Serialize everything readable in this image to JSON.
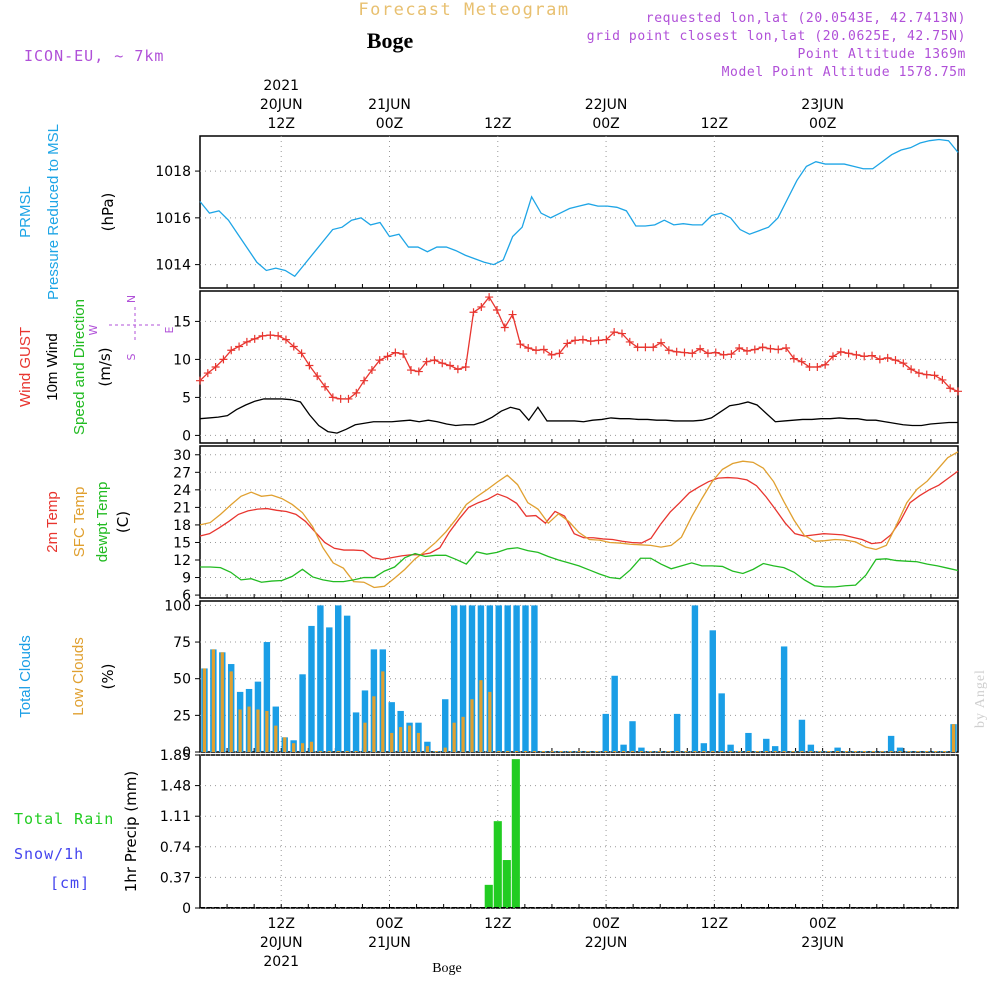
{
  "header": {
    "title": "Forecast Meteogram",
    "location": "Boge",
    "model": "ICON-EU, ~ 7km",
    "requested": "requested lon,lat (20.0543E, 42.7413N)",
    "gridpoint": "grid point closest lon,lat (20.0625E, 42.75N)",
    "point_alt": "Point Altitude 1369m",
    "model_alt": "Model Point Altitude 1578.75m",
    "watermark": "by Angel",
    "footer": "Boge"
  },
  "colors": {
    "pressure": "#1ea5e6",
    "gust": "#e8352f",
    "wind": "#000000",
    "t2m": "#e8352f",
    "tsfc": "#e0a030",
    "dewpt": "#22bb22",
    "total_clouds": "#1a9ee6",
    "low_clouds": "#e0a030",
    "rain": "#22cc22",
    "snow": "#4444ee",
    "header_title": "#e8c070",
    "header_meta": "#b050d8"
  },
  "chart_data": {
    "type": "line",
    "time_axis": {
      "start": "2021-06-20T03Z",
      "end": "2021-06-23T15Z",
      "step_hours": 1,
      "top_labels": [
        {
          "t": "2021-06-20T12Z",
          "lines": [
            "2021",
            "20JUN",
            "12Z"
          ]
        },
        {
          "t": "2021-06-21T00Z",
          "lines": [
            "21JUN",
            "00Z"
          ]
        },
        {
          "t": "2021-06-21T12Z",
          "lines": [
            "12Z"
          ]
        },
        {
          "t": "2021-06-22T00Z",
          "lines": [
            "22JUN",
            "00Z"
          ]
        },
        {
          "t": "2021-06-22T12Z",
          "lines": [
            "12Z"
          ]
        },
        {
          "t": "2021-06-23T00Z",
          "lines": [
            "23JUN",
            "00Z"
          ]
        }
      ],
      "bottom_labels": [
        {
          "t": "2021-06-20T12Z",
          "lines": [
            "12Z",
            "20JUN",
            "2021"
          ]
        },
        {
          "t": "2021-06-21T00Z",
          "lines": [
            "00Z",
            "21JUN"
          ]
        },
        {
          "t": "2021-06-21T12Z",
          "lines": [
            "12Z"
          ]
        },
        {
          "t": "2021-06-22T00Z",
          "lines": [
            "00Z",
            "22JUN"
          ]
        },
        {
          "t": "2021-06-22T12Z",
          "lines": [
            "12Z"
          ]
        },
        {
          "t": "2021-06-23T00Z",
          "lines": [
            "00Z",
            "23JUN"
          ]
        }
      ]
    },
    "panels": [
      {
        "id": "pressure",
        "type": "line",
        "labels": [
          {
            "text": "PRMSL",
            "color": "pressure"
          },
          {
            "text": "Pressure Reduced to MSL",
            "color": "pressure"
          }
        ],
        "unit": "(hPa)",
        "ylim": [
          1013,
          1019.5
        ],
        "yticks": [
          1014,
          1016,
          1018
        ],
        "series": [
          {
            "color": "pressure",
            "values": [
              1016.7,
              1016.2,
              1016.3,
              1015.9,
              1015.3,
              1014.7,
              1014.1,
              1013.75,
              1013.85,
              1013.75,
              1013.5,
              1014.0,
              1014.5,
              1015.0,
              1015.5,
              1015.6,
              1015.9,
              1016.0,
              1015.7,
              1015.8,
              1015.2,
              1015.3,
              1014.75,
              1014.75,
              1014.55,
              1014.75,
              1014.75,
              1014.6,
              1014.4,
              1014.25,
              1014.1,
              1014.0,
              1014.2,
              1015.2,
              1015.6,
              1016.9,
              1016.2,
              1016.0,
              1016.2,
              1016.4,
              1016.5,
              1016.6,
              1016.5,
              1016.5,
              1016.45,
              1016.3,
              1015.65,
              1015.65,
              1015.7,
              1015.9,
              1015.7,
              1015.75,
              1015.7,
              1015.7,
              1016.1,
              1016.2,
              1016.0,
              1015.5,
              1015.3,
              1015.45,
              1015.6,
              1016.0,
              1016.8,
              1017.6,
              1018.2,
              1018.4,
              1018.3,
              1018.3,
              1018.3,
              1018.2,
              1018.1,
              1018.1,
              1018.4,
              1018.7,
              1018.9,
              1019.0,
              1019.2,
              1019.3,
              1019.35,
              1019.3,
              1018.8
            ]
          }
        ]
      },
      {
        "id": "wind",
        "type": "line",
        "labels": [
          {
            "text": "Wind GUST",
            "color": "gust"
          },
          {
            "text": "10m Wind",
            "color": "wind"
          },
          {
            "text": "Speed and Direction",
            "color": "dewpt"
          }
        ],
        "unit": "(m/s)",
        "compass": {
          "n": "N",
          "e": "E",
          "s": "S",
          "w": "W"
        },
        "ylim": [
          -1,
          19
        ],
        "yticks": [
          0,
          5,
          10,
          15
        ],
        "series": [
          {
            "name": "gust",
            "color": "gust",
            "marker": "plus",
            "values": [
              7.2,
              8.2,
              9.0,
              10.0,
              11.2,
              11.7,
              12.3,
              12.7,
              13.1,
              13.2,
              13.1,
              12.6,
              11.7,
              10.8,
              9.2,
              7.8,
              6.4,
              5.0,
              4.8,
              4.8,
              5.6,
              7.2,
              8.6,
              9.9,
              10.4,
              10.9,
              10.7,
              8.6,
              8.4,
              9.7,
              9.9,
              9.5,
              9.2,
              8.7,
              9.0,
              16.2,
              16.9,
              18.2,
              16.5,
              14.2,
              15.9,
              12.0,
              11.5,
              11.2,
              11.3,
              10.6,
              10.8,
              12.1,
              12.5,
              12.6,
              12.4,
              12.5,
              12.6,
              13.6,
              13.4,
              12.3,
              11.6,
              11.6,
              11.6,
              12.2,
              11.2,
              11.0,
              10.9,
              10.8,
              11.4,
              10.8,
              10.9,
              10.6,
              10.7,
              11.5,
              11.1,
              11.3,
              11.6,
              11.4,
              11.3,
              11.5,
              10.1,
              9.7,
              9.0,
              9.0,
              9.3,
              10.4,
              11.0,
              10.8,
              10.6,
              10.4,
              10.5,
              10.0,
              10.2,
              9.9,
              9.5,
              8.7,
              8.2,
              8.0,
              7.9,
              7.3,
              6.2,
              5.8
            ]
          },
          {
            "name": "wind",
            "color": "wind",
            "values": [
              2.2,
              2.3,
              2.4,
              2.6,
              3.4,
              4.0,
              4.5,
              4.8,
              4.8,
              4.8,
              4.7,
              4.4,
              2.7,
              1.3,
              0.5,
              0.3,
              0.8,
              1.4,
              1.6,
              1.8,
              1.8,
              1.8,
              1.9,
              2.0,
              1.8,
              2.0,
              1.8,
              1.5,
              1.3,
              1.4,
              1.4,
              1.8,
              2.4,
              3.2,
              3.7,
              3.4,
              2.0,
              3.7,
              1.9,
              1.9,
              1.9,
              1.9,
              1.8,
              2.0,
              2.1,
              2.3,
              2.2,
              2.2,
              2.1,
              2.1,
              2.0,
              2.0,
              1.9,
              1.9,
              1.9,
              2.0,
              2.3,
              3.1,
              3.9,
              4.1,
              4.4,
              4.0,
              2.9,
              1.8,
              1.9,
              2.0,
              2.1,
              2.1,
              2.2,
              2.2,
              2.3,
              2.2,
              2.2,
              2.0,
              2.0,
              1.8,
              1.6,
              1.4,
              1.3,
              1.3,
              1.5,
              1.6,
              1.7,
              1.7
            ]
          }
        ]
      },
      {
        "id": "temperature",
        "type": "line",
        "labels": [
          {
            "text": "2m Temp",
            "color": "t2m"
          },
          {
            "text": "SFC Temp",
            "color": "tsfc"
          },
          {
            "text": "dewpt Temp",
            "color": "dewpt"
          }
        ],
        "unit": "(C)",
        "ylim": [
          5.5,
          31.5
        ],
        "yticks": [
          6,
          9,
          12,
          15,
          18,
          21,
          24,
          27,
          30
        ],
        "series": [
          {
            "name": "2m Temp",
            "color": "t2m",
            "values": [
              16.1,
              16.5,
              17.5,
              18.6,
              19.8,
              20.4,
              20.7,
              20.8,
              20.5,
              20.3,
              19.8,
              18.6,
              16.8,
              15.0,
              14.0,
              13.7,
              13.7,
              13.6,
              12.4,
              12.1,
              12.4,
              12.7,
              12.9,
              12.9,
              13.2,
              14.1,
              16.8,
              19.0,
              21.0,
              21.8,
              22.4,
              23.3,
              22.7,
              21.7,
              19.5,
              19.6,
              18.3,
              20.3,
              19.5,
              16.5,
              15.8,
              15.8,
              15.6,
              15.5,
              15.2,
              15.0,
              14.9,
              15.7,
              18.1,
              20.2,
              21.8,
              23.5,
              24.5,
              25.4,
              26.0,
              26.1,
              26.0,
              25.7,
              24.7,
              22.8,
              20.6,
              18.3,
              16.5,
              16.1,
              16.3,
              16.5,
              16.4,
              16.3,
              15.9,
              15.5,
              14.8,
              15.0,
              16.3,
              18.7,
              21.8,
              23.0,
              24.0,
              24.8,
              26.0,
              27.2
            ]
          },
          {
            "name": "SFC Temp",
            "color": "tsfc",
            "values": [
              18.0,
              18.4,
              19.8,
              21.4,
              22.9,
              23.6,
              22.9,
              23.1,
              22.5,
              21.5,
              20.1,
              17.7,
              14.1,
              11.5,
              10.6,
              8.3,
              8.2,
              7.3,
              7.5,
              8.9,
              10.4,
              12.2,
              13.5,
              15.0,
              16.8,
              19.0,
              21.5,
              22.8,
              24.0,
              25.3,
              26.5,
              24.9,
              21.8,
              20.7,
              18.3,
              19.9,
              18.6,
              16.7,
              15.5,
              15.4,
              15.0,
              14.9,
              14.7,
              14.6,
              14.5,
              14.2,
              14.5,
              15.9,
              19.4,
              22.5,
              25.4,
              27.5,
              28.5,
              28.9,
              28.7,
              27.7,
              25.4,
              22.0,
              18.8,
              16.2,
              15.2,
              15.3,
              15.5,
              15.4,
              15.1,
              14.2,
              13.8,
              14.5,
              18.0,
              21.8,
              24.1,
              25.5,
              27.5,
              29.5,
              30.5
            ]
          },
          {
            "name": "dewpt Temp",
            "color": "dewpt",
            "values": [
              10.8,
              10.8,
              10.7,
              9.9,
              8.6,
              8.8,
              8.2,
              8.4,
              8.5,
              9.2,
              10.4,
              9.1,
              8.6,
              8.3,
              8.3,
              8.6,
              9.0,
              9.0,
              10.1,
              10.8,
              12.4,
              13.1,
              12.6,
              12.8,
              12.8,
              12.1,
              11.3,
              13.4,
              13.0,
              13.3,
              13.9,
              14.1,
              13.6,
              13.3,
              12.6,
              12.0,
              11.5,
              11.0,
              10.3,
              9.6,
              9.0,
              8.8,
              10.3,
              12.3,
              12.3,
              11.3,
              10.5,
              11.0,
              11.5,
              11.0,
              11.0,
              10.9,
              10.1,
              9.7,
              10.4,
              11.4,
              11.0,
              10.7,
              9.9,
              8.6,
              7.6,
              7.4,
              7.4,
              7.6,
              7.7,
              9.4,
              12.1,
              12.2,
              11.9,
              11.8,
              11.7,
              11.3,
              11.0,
              10.6,
              10.2
            ]
          }
        ]
      },
      {
        "id": "clouds",
        "type": "bar",
        "labels": [
          {
            "text": "Total Clouds",
            "color": "total_clouds"
          },
          {
            "text": "Low Clouds",
            "color": "low_clouds"
          }
        ],
        "unit": "(%)",
        "ylim": [
          0,
          103
        ],
        "yticks": [
          0,
          25,
          50,
          75,
          100
        ],
        "series": [
          {
            "name": "Total Clouds",
            "color": "total_clouds",
            "values": [
              57,
              70,
              68,
              60,
              41,
              43,
              48,
              75,
              31,
              10,
              8,
              53,
              86,
              100,
              85,
              100,
              93,
              27,
              42,
              70,
              70,
              34,
              28,
              20,
              20,
              7,
              0,
              36,
              100,
              100,
              100,
              100,
              100,
              100,
              100,
              100,
              100,
              100,
              0,
              0,
              0,
              0,
              0,
              0,
              0,
              26,
              52,
              5,
              21,
              3,
              0,
              0,
              0,
              26,
              0,
              100,
              6,
              83,
              40,
              5,
              0,
              13,
              0,
              9,
              4,
              72,
              0,
              22,
              5,
              0,
              0,
              3,
              0,
              0,
              0,
              0,
              0,
              11,
              3,
              0,
              0,
              0,
              0,
              0,
              19
            ]
          },
          {
            "name": "Low Clouds",
            "color": "low_clouds",
            "values": [
              57,
              70,
              68,
              55,
              29,
              31,
              29,
              28,
              18,
              10,
              6,
              6,
              7,
              0,
              0,
              0,
              0,
              0,
              20,
              38,
              55,
              13,
              17,
              18,
              13,
              4,
              0,
              3,
              20,
              24,
              36,
              49,
              41,
              0,
              0,
              0,
              0,
              0,
              0,
              0,
              0,
              0,
              0,
              0,
              0,
              0,
              0,
              0,
              0,
              0,
              0,
              0,
              0,
              0,
              0,
              0,
              0,
              0,
              0,
              0,
              0,
              0,
              0,
              0,
              0,
              0,
              0,
              0,
              0,
              0,
              0,
              0,
              0,
              0,
              0,
              0,
              0,
              0,
              0,
              0,
              0,
              0,
              0,
              0,
              19
            ]
          }
        ]
      },
      {
        "id": "precip",
        "type": "bar",
        "labels": [
          {
            "text": "Total  Rain",
            "color": "rain"
          },
          {
            "text": "Snow/1h",
            "color": "snow"
          },
          {
            "text": "[cm]",
            "color": "snow"
          }
        ],
        "unit": "1hr Precip (mm)",
        "ylim": [
          0,
          1.85
        ],
        "yticks": [
          0,
          0.37,
          0.74,
          1.11,
          1.48,
          1.85
        ],
        "ytick_labels": [
          "0",
          "0.37",
          "0.74",
          "1.11",
          "1.48",
          "1.85"
        ],
        "series": [
          {
            "name": "Total  Rain",
            "color": "rain",
            "values": [
              {
                "t": "2021-06-21T11Z",
                "v": 0.28
              },
              {
                "t": "2021-06-21T12Z",
                "v": 1.05
              },
              {
                "t": "2021-06-21T13Z",
                "v": 0.58
              },
              {
                "t": "2021-06-21T14Z",
                "v": 1.8
              }
            ]
          }
        ]
      }
    ]
  }
}
